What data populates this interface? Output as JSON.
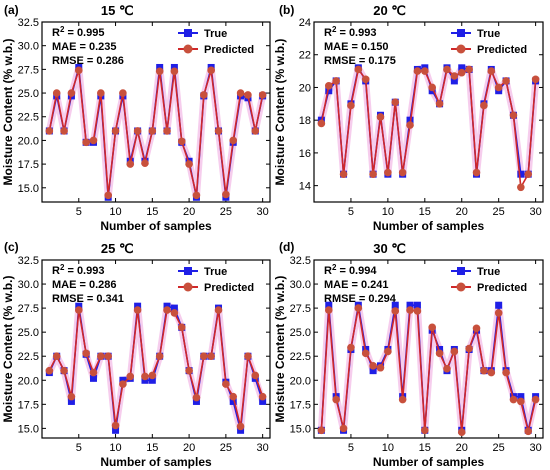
{
  "figure": {
    "colors": {
      "true": "#1f1fe6",
      "predicted": "#c8503c",
      "predicted_line": "#d0282a",
      "halo": "#f2b8e6"
    }
  },
  "chart_data": [
    {
      "type": "line",
      "panel_label": "(a)",
      "title": "15 ℃",
      "metrics": {
        "r2_prefix": "R",
        "r2_sup": "2",
        "r2_value": " = 0.995",
        "mae": "MAE = 0.235",
        "rmse": "RMSE = 0.286"
      },
      "xlabel": "Number of samples",
      "ylabel": "Moisture Content (% w.b.)",
      "xlim": [
        0,
        31
      ],
      "ylim": [
        13.5,
        32.5
      ],
      "xticks": [
        5,
        10,
        15,
        20,
        25,
        30
      ],
      "xtick_labels": [
        "5",
        "10",
        "15",
        "20",
        "25",
        "30"
      ],
      "yticks": [
        15,
        17.5,
        20,
        22.5,
        25,
        27.5,
        30,
        32.5
      ],
      "ytick_labels": [
        "15.0",
        "17.5",
        "20.0",
        "22.5",
        "25.0",
        "27.5",
        "30.0",
        "32.5"
      ],
      "legend": {
        "position": "top-right",
        "entries": [
          "True",
          "Predicted"
        ]
      },
      "x": [
        1,
        2,
        3,
        4,
        5,
        6,
        7,
        8,
        9,
        10,
        11,
        12,
        13,
        14,
        15,
        16,
        17,
        18,
        19,
        20,
        21,
        22,
        23,
        24,
        25,
        26,
        27,
        28,
        29,
        30
      ],
      "series": [
        {
          "name": "True",
          "values": [
            21.0,
            24.7,
            21.0,
            24.7,
            27.7,
            19.8,
            19.8,
            24.7,
            14.0,
            21.0,
            24.7,
            17.8,
            21.0,
            17.8,
            21.0,
            27.7,
            21.0,
            27.7,
            19.8,
            17.8,
            14.0,
            24.7,
            27.7,
            21.0,
            14.0,
            19.8,
            24.7,
            24.5,
            21.0,
            24.7
          ]
        },
        {
          "name": "Predicted",
          "values": [
            21.0,
            25.0,
            21.0,
            25.0,
            27.4,
            19.8,
            20.0,
            25.0,
            14.2,
            21.0,
            25.0,
            17.5,
            21.0,
            17.6,
            21.0,
            27.3,
            21.0,
            27.3,
            19.9,
            17.5,
            14.2,
            24.8,
            27.4,
            21.0,
            14.3,
            20.0,
            25.0,
            24.8,
            21.0,
            24.8
          ]
        }
      ]
    },
    {
      "type": "line",
      "panel_label": "(b)",
      "title": "20 ℃",
      "metrics": {
        "r2_prefix": "R",
        "r2_sup": "2",
        "r2_value": " = 0.993",
        "mae": "MAE = 0.150",
        "rmse": "RMSE = 0.175"
      },
      "xlabel": "Number of samples",
      "ylabel": "Moisture Content (% w.b.)",
      "xlim": [
        0,
        31
      ],
      "ylim": [
        13,
        24
      ],
      "xticks": [
        5,
        10,
        15,
        20,
        25,
        30
      ],
      "xtick_labels": [
        "5",
        "10",
        "15",
        "20",
        "25",
        "30"
      ],
      "yticks": [
        14,
        16,
        18,
        20,
        22,
        24
      ],
      "ytick_labels": [
        "14",
        "16",
        "18",
        "20",
        "22",
        "24"
      ],
      "legend": {
        "position": "top-right",
        "entries": [
          "True",
          "Predicted"
        ]
      },
      "x": [
        1,
        2,
        3,
        4,
        5,
        6,
        7,
        8,
        9,
        10,
        11,
        12,
        13,
        14,
        15,
        16,
        17,
        18,
        19,
        20,
        21,
        22,
        23,
        24,
        25,
        26,
        27,
        28,
        29,
        30
      ],
      "series": [
        {
          "name": "True",
          "values": [
            18.0,
            19.8,
            20.4,
            14.7,
            19.0,
            21.2,
            20.4,
            14.7,
            18.3,
            14.7,
            19.1,
            14.7,
            18.0,
            21.1,
            21.2,
            19.8,
            19.0,
            21.2,
            20.4,
            21.2,
            21.1,
            14.7,
            19.0,
            21.1,
            19.8,
            20.4,
            18.3,
            14.7,
            14.7,
            20.4
          ]
        },
        {
          "name": "Predicted",
          "values": [
            17.8,
            20.1,
            20.4,
            14.7,
            18.9,
            21.1,
            20.5,
            14.7,
            18.2,
            14.8,
            19.1,
            14.8,
            17.7,
            21.0,
            21.0,
            20.0,
            19.0,
            21.1,
            20.7,
            20.9,
            21.1,
            14.8,
            18.9,
            21.0,
            20.0,
            20.4,
            18.3,
            13.9,
            14.7,
            20.5
          ]
        }
      ]
    },
    {
      "type": "line",
      "panel_label": "(c)",
      "title": "25 ℃",
      "metrics": {
        "r2_prefix": "R",
        "r2_sup": "2",
        "r2_value": " = 0.993",
        "mae": "MAE = 0.286",
        "rmse": "RMSE = 0.341"
      },
      "xlabel": "Number of samples",
      "ylabel": "Moisture Content (% w.b.)",
      "xlim": [
        0,
        31
      ],
      "ylim": [
        14,
        32.5
      ],
      "xticks": [
        5,
        10,
        15,
        20,
        25,
        30
      ],
      "xtick_labels": [
        "5",
        "10",
        "15",
        "20",
        "25",
        "30"
      ],
      "yticks": [
        15,
        17.5,
        20,
        22.5,
        25,
        27.5,
        30,
        32.5
      ],
      "ytick_labels": [
        "15.0",
        "17.5",
        "20.0",
        "22.5",
        "25.0",
        "27.5",
        "30.0",
        "32.5"
      ],
      "legend": {
        "position": "top-right",
        "entries": [
          "True",
          "Predicted"
        ]
      },
      "x": [
        1,
        2,
        3,
        4,
        5,
        6,
        7,
        8,
        9,
        10,
        11,
        12,
        13,
        14,
        15,
        16,
        17,
        18,
        19,
        20,
        21,
        22,
        23,
        24,
        25,
        26,
        27,
        28,
        29,
        30
      ],
      "series": [
        {
          "name": "True",
          "values": [
            20.8,
            22.5,
            21.0,
            17.8,
            27.7,
            22.7,
            20.2,
            22.5,
            22.5,
            14.8,
            20.0,
            20.2,
            27.7,
            20.0,
            20.0,
            22.5,
            27.7,
            27.5,
            25.5,
            21.0,
            17.8,
            22.5,
            22.5,
            27.5,
            19.8,
            17.8,
            14.8,
            22.5,
            20.2,
            17.8
          ]
        },
        {
          "name": "Predicted",
          "values": [
            21.0,
            22.5,
            21.0,
            18.3,
            27.3,
            22.8,
            20.8,
            22.5,
            22.5,
            15.3,
            19.6,
            20.4,
            27.3,
            20.4,
            20.5,
            22.5,
            27.3,
            27.0,
            25.5,
            21.0,
            18.2,
            22.5,
            22.5,
            27.3,
            19.6,
            18.3,
            15.2,
            22.5,
            20.5,
            18.3
          ]
        }
      ]
    },
    {
      "type": "line",
      "panel_label": "(d)",
      "title": "30 ℃",
      "metrics": {
        "r2_prefix": "R",
        "r2_sup": "2",
        "r2_value": " = 0.994",
        "mae": "MAE = 0.241",
        "rmse": "RMSE = 0.294"
      },
      "xlabel": "Number of samples",
      "ylabel": "Moisture Content (% w.b.)",
      "xlim": [
        0,
        31
      ],
      "ylim": [
        14,
        32.5
      ],
      "xticks": [
        5,
        10,
        15,
        20,
        25,
        30
      ],
      "xtick_labels": [
        "5",
        "10",
        "15",
        "20",
        "25",
        "30"
      ],
      "yticks": [
        15,
        17.5,
        20,
        22.5,
        25,
        27.5,
        30,
        32.5
      ],
      "ytick_labels": [
        "15.0",
        "17.5",
        "20.0",
        "22.5",
        "25.0",
        "27.5",
        "30.0",
        "32.5"
      ],
      "legend": {
        "position": "top-right",
        "entries": [
          "True",
          "Predicted"
        ]
      },
      "x": [
        1,
        2,
        3,
        4,
        5,
        6,
        7,
        8,
        9,
        10,
        11,
        12,
        13,
        14,
        15,
        16,
        17,
        18,
        19,
        20,
        21,
        22,
        23,
        24,
        25,
        26,
        27,
        28,
        29,
        30
      ],
      "series": [
        {
          "name": "True",
          "values": [
            14.8,
            27.8,
            18.3,
            14.8,
            23.2,
            27.8,
            23.2,
            21.0,
            21.5,
            23.2,
            27.8,
            18.3,
            27.8,
            27.8,
            14.8,
            25.2,
            23.2,
            21.0,
            23.2,
            14.8,
            23.2,
            25.2,
            21.0,
            21.0,
            27.8,
            21.0,
            18.3,
            18.3,
            14.8,
            18.3
          ]
        },
        {
          "name": "Predicted",
          "values": [
            14.8,
            27.3,
            18.0,
            15.0,
            23.4,
            27.5,
            22.8,
            21.5,
            21.3,
            23.0,
            27.2,
            18.0,
            27.3,
            27.2,
            14.8,
            25.5,
            22.8,
            21.2,
            23.0,
            14.6,
            23.3,
            25.4,
            21.0,
            20.8,
            27.0,
            20.8,
            18.0,
            17.8,
            14.7,
            18.0
          ]
        }
      ]
    }
  ]
}
